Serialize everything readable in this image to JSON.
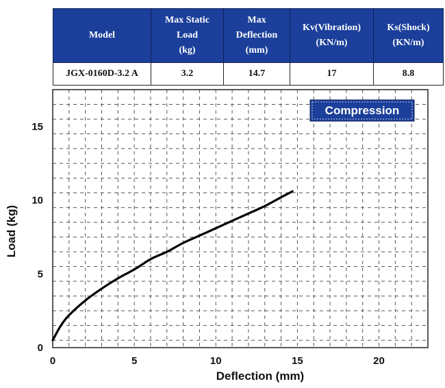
{
  "spec_table": {
    "headers": [
      [
        "Model"
      ],
      [
        "Max Static",
        "Load",
        "(kg)"
      ],
      [
        "Max",
        "Deflection",
        "(mm)"
      ],
      [
        "Kv(Vibration)",
        "(KN/m)"
      ],
      [
        "Ks(Shock)",
        "(KN/m)"
      ]
    ],
    "row": [
      "JGX-0160D-3.2 A",
      "3.2",
      "14.7",
      "17",
      "8.8"
    ]
  },
  "chart_data": {
    "type": "line",
    "legend": "Compression",
    "legend_placement": "top-right",
    "xlabel": "Deflection (mm)",
    "ylabel": "Load (kg)",
    "xlim": [
      0,
      23
    ],
    "ylim": [
      0,
      17.5
    ],
    "x_ticks": [
      "0",
      "5",
      "10",
      "15",
      "20"
    ],
    "y_ticks": [
      "0",
      "5",
      "10",
      "15"
    ],
    "grid": true,
    "series": [
      {
        "x": [
          0,
          0.5,
          1,
          2,
          3,
          4,
          5,
          6,
          7,
          8,
          9,
          10,
          11,
          12,
          13,
          14,
          14.7
        ],
        "y": [
          0.5,
          1.5,
          2.2,
          3.2,
          4.0,
          4.7,
          5.3,
          6.0,
          6.5,
          7.1,
          7.6,
          8.1,
          8.6,
          9.1,
          9.6,
          10.2,
          10.6
        ]
      }
    ],
    "colors": {
      "line": "#000000",
      "legend_bg": "#1b3f9a",
      "grid": "#555555"
    }
  }
}
